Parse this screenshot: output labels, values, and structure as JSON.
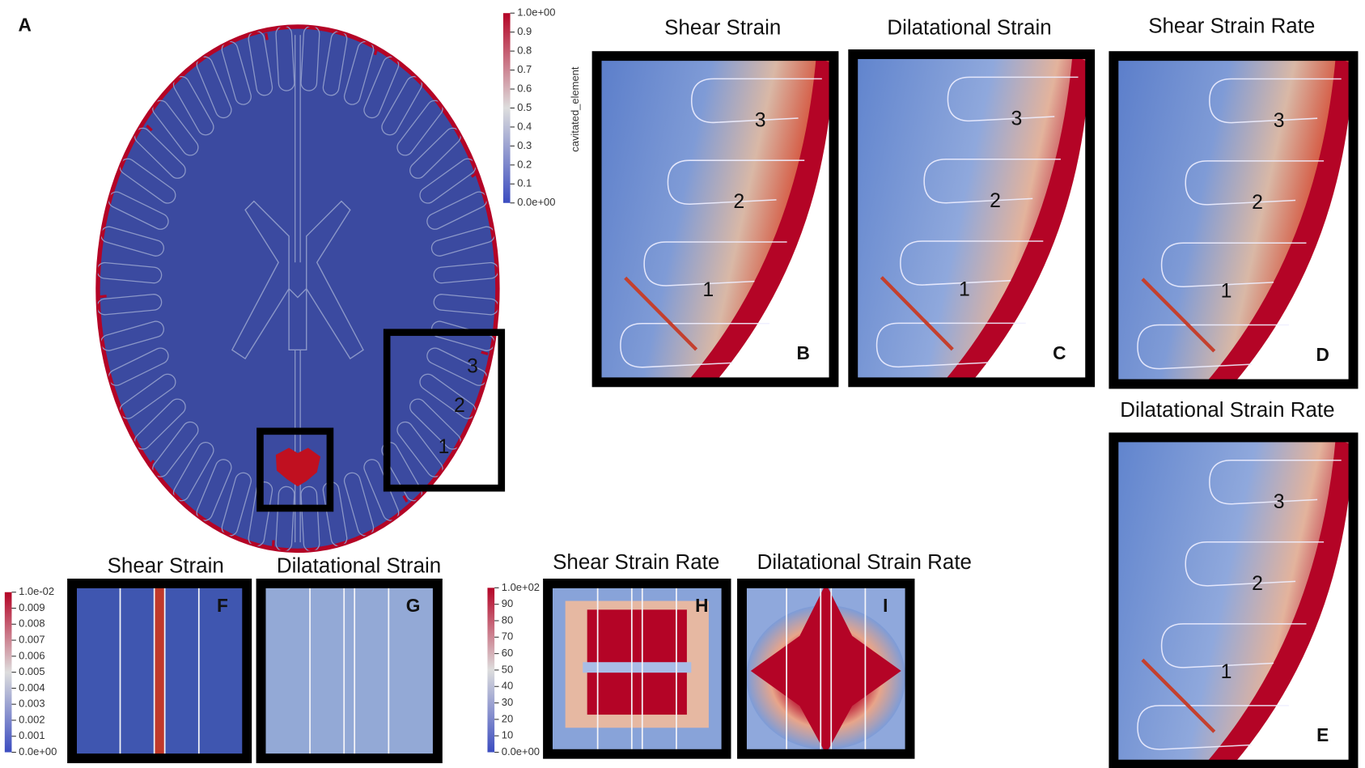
{
  "panel_a": {
    "label": "A",
    "colorbar": {
      "title": "cavitated_element",
      "ticks": [
        "1.0e+00",
        "0.9",
        "0.8",
        "0.7",
        "0.6",
        "0.5",
        "0.4",
        "0.3",
        "0.2",
        "0.1",
        "0.0e+00"
      ]
    },
    "region_labels": [
      "3",
      "2",
      "1"
    ]
  },
  "panels_top": [
    {
      "title": "Shear Strain",
      "label": "B",
      "region_labels": [
        "3",
        "2",
        "1"
      ]
    },
    {
      "title": "Dilatational Strain",
      "label": "C",
      "region_labels": [
        "3",
        "2",
        "1"
      ]
    },
    {
      "title": "Shear Strain Rate",
      "label": "D",
      "region_labels": [
        "3",
        "2",
        "1"
      ]
    },
    {
      "title": "Dilatational Strain Rate",
      "label": "E",
      "region_labels": [
        "3",
        "2",
        "1"
      ]
    }
  ],
  "panels_bottom": [
    {
      "title": "Shear Strain",
      "label": "F"
    },
    {
      "title": "Dilatational Strain",
      "label": "G"
    },
    {
      "title": "Shear Strain Rate",
      "label": "H"
    },
    {
      "title": "Dilatational Strain Rate",
      "label": "I"
    }
  ],
  "colorbar_strain": {
    "ticks": [
      "1.0e-02",
      "0.009",
      "0.008",
      "0.007",
      "0.006",
      "0.005",
      "0.004",
      "0.003",
      "0.002",
      "0.001",
      "0.0e+00"
    ]
  },
  "colorbar_rate": {
    "ticks": [
      "1.0e+02",
      "90",
      "80",
      "70",
      "60",
      "50",
      "40",
      "30",
      "20",
      "10",
      "0.0e+00"
    ]
  }
}
